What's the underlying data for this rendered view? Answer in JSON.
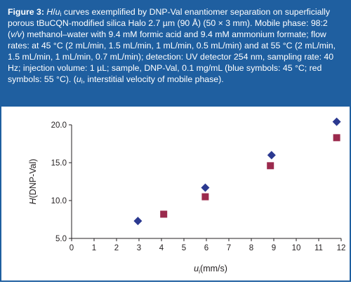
{
  "caption": {
    "label": "Figure 3:",
    "title_h": "H",
    "title_slash": "/",
    "title_u": "u",
    "title_u_sub": "i",
    "text_1": " curves exemplified by DNP-Val enantiomer separation on superficially porous tBuCQN-modified silica Halo 2.7 µm (90 Å) (50 × 3 mm). Mobile phase: 98:2 (",
    "text_vv": "v/v",
    "text_2": ") methanol–water with 9.4 mM formic acid and 9.4 mM ammonium formate; flow rates: at 45 °C (2 mL/min, 1.5 mL/min, 1 mL/min, 0.5 mL/min) and at 55 °C (2 mL/min, 1.5 mL/min, 1 mL/min, 0.7 mL/min); detection: UV detector 254 nm, sampling rate: 40 Hz; injection volume: 1 µL; sample, DNP-Val, 0.1 mg/mL (blue symbols: 45 °C; red symbols: 55 °C). (",
    "text_u": "u",
    "text_u_sub": "i",
    "text_3": ", interstitial velocity of mobile phase)."
  },
  "colors": {
    "caption_bg": "#1f5fa0",
    "series_45": "#2b3990",
    "series_55": "#9b2a4d"
  },
  "chart_data": {
    "type": "scatter",
    "ylabel_italic": "H",
    "ylabel_rest": "(DNP-Val)",
    "xlabel_main": "u",
    "xlabel_sub": "i",
    "xlabel_rest": "(mm/s)",
    "xlim": [
      0,
      12
    ],
    "ylim": [
      5.0,
      20.0
    ],
    "x_ticks": [
      "0",
      "1",
      "2",
      "3",
      "4",
      "5",
      "6",
      "7",
      "8",
      "9",
      "10",
      "11",
      "12"
    ],
    "y_ticks": [
      "5.0",
      "10.0",
      "15.0",
      "20.0"
    ],
    "x_tick_values": [
      0,
      1,
      2,
      3,
      4,
      5,
      6,
      7,
      8,
      9,
      10,
      11,
      12
    ],
    "y_tick_values": [
      5.0,
      10.0,
      15.0,
      20.0
    ],
    "grid": false,
    "series": [
      {
        "marker": "diamond",
        "color": "#2b3990",
        "points": [
          [
            2.95,
            7.3
          ],
          [
            5.95,
            11.7
          ],
          [
            8.9,
            16.0
          ],
          [
            11.8,
            20.4
          ]
        ]
      },
      {
        "marker": "square",
        "color": "#9b2a4d",
        "points": [
          [
            4.1,
            8.2
          ],
          [
            5.95,
            10.5
          ],
          [
            8.85,
            14.6
          ],
          [
            11.8,
            18.3
          ]
        ]
      }
    ]
  }
}
